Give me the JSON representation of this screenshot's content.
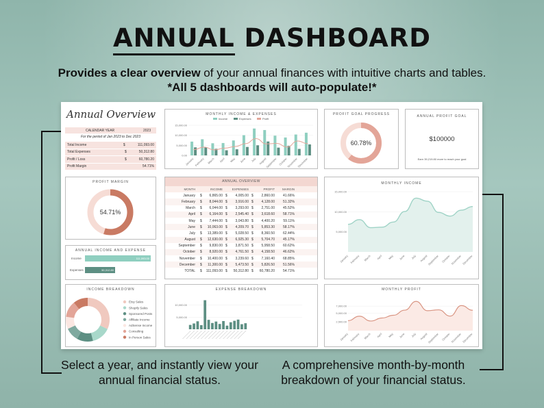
{
  "headline": {
    "part1": "ANNUAL",
    "part2": "DASHBOARD"
  },
  "subtitle": {
    "bold1": "Provides a clear overview",
    "text1": " of your annual finances with intuitive charts and tables. ",
    "bold2": "*All 5 dashboards will auto-populate!*"
  },
  "captions": {
    "left": "Select a year, and instantly view your annual financial status.",
    "right": "A comprehensive month-by-month breakdown of your financial status."
  },
  "overview": {
    "title": "Annual Overview",
    "calendar_year_label": "CALENDAR YEAR",
    "calendar_year_value": "2023",
    "period_note": "For the period of Jan 2023 to Dec 2023",
    "rows": [
      {
        "label": "Total Income",
        "cur": "$",
        "value": "111,093.00"
      },
      {
        "label": "Total Expenses",
        "cur": "$",
        "value": "50,312.80"
      },
      {
        "label": "Profit / Loss",
        "cur": "$",
        "value": "60,780.20"
      },
      {
        "label": "Profit Margin",
        "cur": "",
        "value": "54.71%"
      }
    ]
  },
  "monthly_ie": {
    "title": "MONTHLY INCOME & EXPENSES",
    "legend": [
      "Income",
      "Expenses",
      "Profit"
    ],
    "colors": {
      "income": "#8fcfc0",
      "expenses": "#5d8f83",
      "profit": "#e3a598"
    },
    "y_ticks": [
      "15,000.00",
      "10,000.00",
      "5,000.00",
      "0.00"
    ]
  },
  "profit_goal_progress": {
    "title": "PROFIT GOAL PROGRESS",
    "value": "60.78%",
    "fraction": 0.6078
  },
  "annual_profit_goal": {
    "title": "ANNUAL PROFIT GOAL",
    "value": "$100000",
    "note": "Earn 39,219.80 more to reach your goal"
  },
  "profit_margin": {
    "title": "PROFIT MARGIN",
    "value": "54.71%",
    "fraction": 0.5471
  },
  "annual_overview_table": {
    "title": "ANNUAL OVERVIEW",
    "headers": [
      "MONTH",
      "INCOME",
      "EXPENSES",
      "PROFIT",
      "MARGIN"
    ],
    "rows": [
      [
        "January",
        "6,865.00",
        "4,005.00",
        "2,860.00",
        "41.66%"
      ],
      [
        "February",
        "8,044.00",
        "3,916.00",
        "4,128.00",
        "51.32%"
      ],
      [
        "March",
        "6,044.00",
        "3,293.00",
        "2,751.00",
        "45.52%"
      ],
      [
        "April",
        "6,164.00",
        "2,545.40",
        "3,618.60",
        "58.71%"
      ],
      [
        "May",
        "7,444.00",
        "3,043.80",
        "4,400.20",
        "59.11%"
      ],
      [
        "June",
        "10,063.00",
        "4,209.70",
        "5,853.30",
        "58.17%"
      ],
      [
        "July",
        "13,389.00",
        "5,028.50",
        "8,360.50",
        "62.44%"
      ],
      [
        "August",
        "12,630.00",
        "6,925.30",
        "5,704.70",
        "45.17%"
      ],
      [
        "September",
        "9,830.00",
        "3,871.50",
        "5,958.50",
        "60.62%"
      ],
      [
        "October",
        "8,920.00",
        "4,761.50",
        "4,158.50",
        "46.62%"
      ],
      [
        "November",
        "10,400.00",
        "3,239.60",
        "7,160.40",
        "68.85%"
      ],
      [
        "December",
        "11,300.00",
        "5,473.50",
        "5,826.50",
        "51.56%"
      ]
    ],
    "total": [
      "TOTAL",
      "111,093.00",
      "50,312.80",
      "60,780.20",
      "54.71%"
    ]
  },
  "monthly_income": {
    "title": "MONTHLY INCOME",
    "y_ticks": [
      "15,000.00",
      "10,000.00",
      "5,000.00"
    ]
  },
  "annual_ie": {
    "title": "ANNUAL INCOME AND EXPENSE",
    "income_label": "Income",
    "income_value": "111,093.00",
    "expense_label": "Expenses",
    "expense_value": "50,312.80"
  },
  "income_breakdown": {
    "title": "INCOME BREAKDOWN",
    "items": [
      {
        "label": "Etsy Sales",
        "color": "#f0c9bf",
        "value": 32
      },
      {
        "label": "Shopify Sales",
        "color": "#a8d8ca",
        "value": 14
      },
      {
        "label": "Sponsored Posts",
        "color": "#5d8f83",
        "value": 12
      },
      {
        "label": "Affiliate Income",
        "color": "#7fa99f",
        "value": 10
      },
      {
        "label": "AdSense Income",
        "color": "#fbe7e2",
        "value": 9
      },
      {
        "label": "Consulting",
        "color": "#e3a598",
        "value": 12
      },
      {
        "label": "In Person Sales",
        "color": "#c97a63",
        "value": 11
      }
    ]
  },
  "expense_breakdown": {
    "title": "EXPENSE BREAKDOWN",
    "y_ticks": [
      "10,000.00",
      "5,000.00"
    ]
  },
  "monthly_profit": {
    "title": "MONTHLY PROFIT",
    "y_ticks": [
      "7,000.00",
      "5,000.00",
      "2,500.00"
    ]
  },
  "months_short": [
    "January",
    "February",
    "March",
    "April",
    "May",
    "June",
    "July",
    "August",
    "September",
    "October",
    "November",
    "December"
  ],
  "chart_data": [
    {
      "type": "bar",
      "title": "MONTHLY INCOME & EXPENSES",
      "categories": [
        "January",
        "February",
        "March",
        "April",
        "May",
        "June",
        "July",
        "August",
        "September",
        "October",
        "November",
        "December"
      ],
      "series": [
        {
          "name": "Income",
          "values": [
            6865,
            8044,
            6044,
            6164,
            7444,
            10063,
            13389,
            12630,
            9830,
            8920,
            10400,
            11300
          ]
        },
        {
          "name": "Expenses",
          "values": [
            4005,
            3916,
            3293,
            2545.4,
            3043.8,
            4209.7,
            5028.5,
            6925.3,
            3871.5,
            4761.5,
            3239.6,
            5473.5
          ]
        },
        {
          "name": "Profit",
          "values": [
            2860,
            4128,
            2751,
            3618.6,
            4400.2,
            5853.3,
            8360.5,
            5704.7,
            5958.5,
            4158.5,
            7160.4,
            5826.5
          ]
        }
      ],
      "ylim": [
        0,
        15000
      ]
    },
    {
      "type": "area",
      "title": "MONTHLY INCOME",
      "categories": [
        "January",
        "February",
        "March",
        "April",
        "May",
        "June",
        "July",
        "August",
        "September",
        "October",
        "November",
        "December"
      ],
      "values": [
        6865,
        8044,
        6044,
        6164,
        7444,
        10063,
        13389,
        12630,
        9830,
        8920,
        10400,
        11300
      ],
      "ylim": [
        0,
        15000
      ]
    },
    {
      "type": "area",
      "title": "MONTHLY PROFIT",
      "categories": [
        "January",
        "February",
        "March",
        "April",
        "May",
        "June",
        "July",
        "August",
        "September",
        "October",
        "November",
        "December"
      ],
      "values": [
        2860,
        4128,
        2751,
        3618.6,
        4400.2,
        5853.3,
        8360.5,
        5704.7,
        5958.5,
        4158.5,
        7160.4,
        5826.5
      ],
      "ylim": [
        0,
        9000
      ]
    },
    {
      "type": "bar",
      "title": "EXPENSE BREAKDOWN",
      "values": [
        1800,
        2400,
        3300,
        1700,
        12000,
        3900,
        2600,
        3200,
        2200,
        3400,
        1500,
        2900,
        3500,
        4000,
        2100,
        2500
      ],
      "ylim": [
        0,
        13000
      ]
    },
    {
      "type": "bar",
      "title": "ANNUAL INCOME AND EXPENSE",
      "categories": [
        "Income",
        "Expenses"
      ],
      "values": [
        111093,
        50312.8
      ]
    }
  ]
}
